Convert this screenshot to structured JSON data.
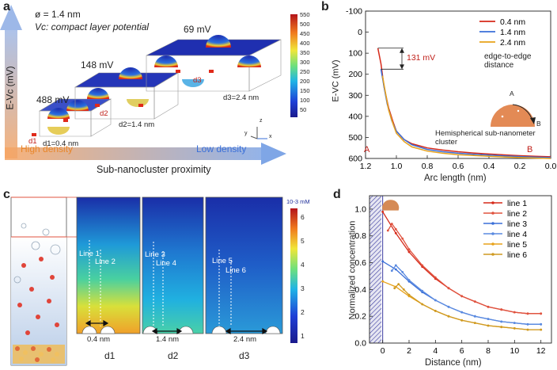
{
  "panel_a": {
    "label": "a",
    "diameter_note": "ø = 1.4 nm",
    "vc_note": "Vc: compact layer potential",
    "y_axis_label": "E-Vc (mV)",
    "x_axis_label": "Sub-nanocluster proximity",
    "high_density": "High density",
    "low_density": "Low density",
    "blocks": [
      {
        "potential": "488 mV",
        "d_label": "d1",
        "d_value": "d1=0.4 nm"
      },
      {
        "potential": "148 mV",
        "d_label": "d2",
        "d_value": "d2=1.4 nm"
      },
      {
        "potential": "69 mV",
        "d_label": "d3",
        "d_value": "d3=2.4 nm"
      }
    ],
    "colorbar_ticks": [
      "550",
      "500",
      "450",
      "400",
      "350",
      "300",
      "250",
      "200",
      "150",
      "100",
      "50"
    ],
    "axes_triad": {
      "z": "z",
      "y": "y",
      "x": "x"
    }
  },
  "panel_b": {
    "label": "b",
    "chart_data": {
      "type": "line",
      "xlabel": "Arc length (nm)",
      "ylabel": "E-VC (mV)",
      "xlim": [
        1.2,
        0.0
      ],
      "ylim": [
        600,
        -100
      ],
      "x_ticks": [
        "1.2",
        "1.0",
        "0.8",
        "0.6",
        "0.4",
        "0.2",
        "0.0"
      ],
      "y_ticks": [
        "-100",
        "0",
        "100",
        "200",
        "300",
        "400",
        "500",
        "600"
      ],
      "legend": [
        "0.4 nm",
        "1.4 nm",
        "2.4 nm"
      ],
      "legend_note": "edge-to-edge distance",
      "annotation": "131 mV",
      "endpoint_A": "A",
      "endpoint_B": "B",
      "inset_label": "Hemispherical sub-nanometer cluster",
      "series": [
        {
          "name": "0.4 nm",
          "color": "#d62a1a",
          "x": [
            1.12,
            1.1,
            1.08,
            1.05,
            1.02,
            1.0,
            0.95,
            0.9,
            0.8,
            0.7,
            0.6,
            0.5,
            0.4,
            0.3,
            0.2,
            0.1,
            0.0
          ],
          "y": [
            76,
            150,
            260,
            360,
            430,
            470,
            510,
            530,
            550,
            560,
            568,
            574,
            579,
            583,
            587,
            590,
            592
          ]
        },
        {
          "name": "1.4 nm",
          "color": "#3a6fd8",
          "x": [
            1.1,
            1.08,
            1.06,
            1.03,
            1.0,
            0.95,
            0.9,
            0.8,
            0.7,
            0.6,
            0.5,
            0.4,
            0.3,
            0.2,
            0.1,
            0.0
          ],
          "y": [
            176,
            260,
            340,
            420,
            470,
            510,
            535,
            557,
            568,
            575,
            580,
            584,
            588,
            591,
            594,
            596
          ]
        },
        {
          "name": "2.4 nm",
          "color": "#e8a21a",
          "x": [
            1.09,
            1.07,
            1.05,
            1.02,
            1.0,
            0.95,
            0.9,
            0.8,
            0.7,
            0.6,
            0.5,
            0.4,
            0.3,
            0.2,
            0.1,
            0.0
          ],
          "y": [
            207,
            290,
            370,
            440,
            480,
            520,
            545,
            565,
            575,
            582,
            586,
            590,
            593,
            596,
            598,
            600
          ]
        }
      ]
    }
  },
  "panel_c": {
    "label": "c",
    "unit": "10-3 mM",
    "colorbar_ticks": [
      "6",
      "5",
      "4",
      "3",
      "2",
      "1"
    ],
    "maps": [
      {
        "line_a": "Line 1",
        "line_b": "Line 2",
        "dist": "0.4 nm",
        "d_label": "d1"
      },
      {
        "line_a": "Line 3",
        "line_b": "Line 4",
        "dist": "1.4 nm",
        "d_label": "d2"
      },
      {
        "line_a": "Line 5",
        "line_b": "Line 6",
        "dist": "2.4 nm",
        "d_label": "d3"
      }
    ]
  },
  "panel_d": {
    "label": "d",
    "chart_data": {
      "type": "line",
      "xlabel": "Distance (nm)",
      "ylabel": "Normalized concentration",
      "xlim": [
        -1,
        12.8
      ],
      "ylim": [
        0.0,
        1.1
      ],
      "x_ticks": [
        "0",
        "2",
        "4",
        "6",
        "8",
        "10",
        "12"
      ],
      "y_ticks": [
        "0.0",
        "0.2",
        "0.4",
        "0.6",
        "0.8",
        "1.0"
      ],
      "series": [
        {
          "name": "line 1",
          "color": "#d62a1a",
          "x": [
            0,
            1,
            2,
            3,
            4,
            5,
            6,
            7,
            8,
            9,
            10,
            11,
            12
          ],
          "y": [
            0.98,
            0.82,
            0.68,
            0.57,
            0.48,
            0.41,
            0.35,
            0.31,
            0.27,
            0.25,
            0.23,
            0.22,
            0.22
          ]
        },
        {
          "name": "line 2",
          "color": "#e0533f",
          "x": [
            0.4,
            0.7,
            1.0,
            1.5,
            2,
            3,
            4,
            5,
            6,
            7,
            8,
            9,
            10,
            11,
            12
          ],
          "y": [
            0.84,
            0.89,
            0.85,
            0.78,
            0.7,
            0.58,
            0.49,
            0.41,
            0.35,
            0.31,
            0.27,
            0.25,
            0.23,
            0.22,
            0.22
          ]
        },
        {
          "name": "line 3",
          "color": "#3a6fd8",
          "x": [
            0,
            1,
            2,
            3,
            4,
            5,
            6,
            7,
            8,
            9,
            10,
            11,
            12
          ],
          "y": [
            0.61,
            0.55,
            0.46,
            0.38,
            0.32,
            0.27,
            0.23,
            0.2,
            0.18,
            0.16,
            0.15,
            0.14,
            0.14
          ]
        },
        {
          "name": "line 4",
          "color": "#5a8ae0",
          "x": [
            0.7,
            1.0,
            1.5,
            2,
            3,
            4,
            5,
            6,
            7,
            8,
            9,
            10,
            11,
            12
          ],
          "y": [
            0.54,
            0.58,
            0.53,
            0.47,
            0.39,
            0.32,
            0.27,
            0.23,
            0.2,
            0.18,
            0.16,
            0.15,
            0.14,
            0.14
          ]
        },
        {
          "name": "line 5",
          "color": "#e8a21a",
          "x": [
            0,
            1,
            2,
            3,
            4,
            5,
            6,
            7,
            8,
            9,
            10,
            11,
            12
          ],
          "y": [
            0.46,
            0.42,
            0.35,
            0.29,
            0.24,
            0.2,
            0.17,
            0.15,
            0.13,
            0.12,
            0.11,
            0.1,
            0.1
          ]
        },
        {
          "name": "line 6",
          "color": "#cf9a22",
          "x": [
            0.9,
            1.2,
            1.6,
            2,
            3,
            4,
            5,
            6,
            7,
            8,
            9,
            10,
            11,
            12
          ],
          "y": [
            0.41,
            0.44,
            0.4,
            0.36,
            0.29,
            0.24,
            0.2,
            0.17,
            0.15,
            0.13,
            0.12,
            0.11,
            0.1,
            0.1
          ]
        }
      ]
    }
  }
}
